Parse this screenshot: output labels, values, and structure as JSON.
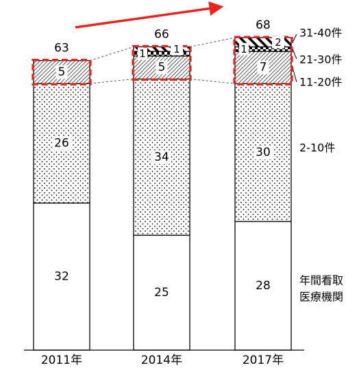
{
  "chart_data": {
    "type": "bar",
    "stacked": true,
    "categories": [
      "2011年",
      "2014年",
      "2017年"
    ],
    "totals": [
      63,
      66,
      68
    ],
    "series": [
      {
        "name": "年間看取\n医療機関",
        "values": [
          32,
          25,
          28
        ],
        "pattern": "white"
      },
      {
        "name": "2-10件",
        "values": [
          26,
          34,
          30
        ],
        "pattern": "dots"
      },
      {
        "name": "11-20件",
        "values": [
          5,
          5,
          7
        ],
        "pattern": "hatch"
      },
      {
        "name": "21-30件",
        "values": [
          0,
          1,
          1
        ],
        "pattern": "checker"
      },
      {
        "name": "31-40件",
        "values": [
          0,
          1,
          2
        ],
        "pattern": "diagonal"
      }
    ],
    "ylim": [
      0,
      70
    ],
    "legend_position": "right",
    "annotations": [
      "red trend arrow (increase)",
      "red dashed boxes around 11件以上 segments"
    ],
    "colors": {
      "highlight": "#e8231e",
      "bar_stroke": "#000000"
    }
  }
}
